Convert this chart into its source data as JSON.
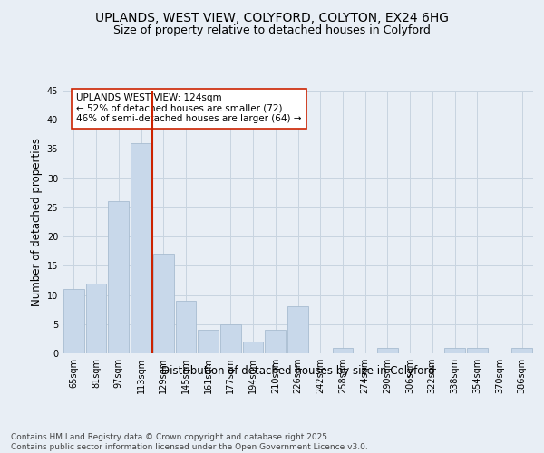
{
  "title": "UPLANDS, WEST VIEW, COLYFORD, COLYTON, EX24 6HG",
  "subtitle": "Size of property relative to detached houses in Colyford",
  "xlabel": "Distribution of detached houses by size in Colyford",
  "ylabel": "Number of detached properties",
  "footer": "Contains HM Land Registry data © Crown copyright and database right 2025.\nContains public sector information licensed under the Open Government Licence v3.0.",
  "categories": [
    "65sqm",
    "81sqm",
    "97sqm",
    "113sqm",
    "129sqm",
    "145sqm",
    "161sqm",
    "177sqm",
    "194sqm",
    "210sqm",
    "226sqm",
    "242sqm",
    "258sqm",
    "274sqm",
    "290sqm",
    "306sqm",
    "322sqm",
    "338sqm",
    "354sqm",
    "370sqm",
    "386sqm"
  ],
  "values": [
    11,
    12,
    26,
    36,
    17,
    9,
    4,
    5,
    2,
    4,
    8,
    0,
    1,
    0,
    1,
    0,
    0,
    1,
    1,
    0,
    1
  ],
  "bar_color": "#c8d8ea",
  "bar_edge_color": "#a8bcd0",
  "grid_color": "#c8d4e0",
  "bg_color": "#e8eef5",
  "vline_color": "#cc2200",
  "annotation_text": "UPLANDS WEST VIEW: 124sqm\n← 52% of detached houses are smaller (72)\n46% of semi-detached houses are larger (64) →",
  "annotation_box_facecolor": "#ffffff",
  "annotation_box_edgecolor": "#cc2200",
  "ylim": [
    0,
    45
  ],
  "yticks": [
    0,
    5,
    10,
    15,
    20,
    25,
    30,
    35,
    40,
    45
  ],
  "title_fontsize": 10,
  "subtitle_fontsize": 9,
  "axis_label_fontsize": 8.5,
  "tick_fontsize": 7,
  "annotation_fontsize": 7.5,
  "footer_fontsize": 6.5
}
